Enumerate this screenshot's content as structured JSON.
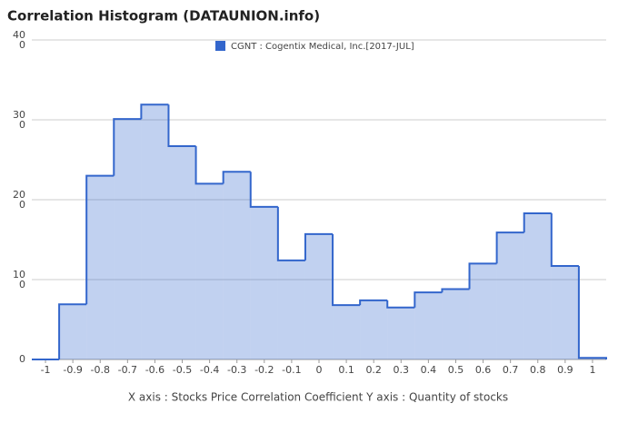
{
  "chart_data": {
    "type": "histogram",
    "title": "Correlation Histogram (DATAUNION.info)",
    "x_label": "X axis : Stocks Price Correlation Coefficient  Y axis : Quantity of stocks",
    "bins": [
      -1.05,
      -0.95,
      -0.85,
      -0.75,
      -0.65,
      -0.55,
      -0.45,
      -0.35,
      -0.25,
      -0.15,
      -0.05,
      0.05,
      0.15,
      0.25,
      0.35,
      0.45,
      0.55,
      0.65,
      0.75,
      0.85,
      0.95,
      1.05
    ],
    "series": [
      {
        "name": "CGNT : Cogentix Medical, Inc.[2017-JUL]",
        "color": "#3366cc",
        "values": [
          0,
          69,
          230,
          301,
          319,
          267,
          220,
          235,
          191,
          124,
          157,
          68,
          74,
          65,
          84,
          88,
          120,
          159,
          183,
          117,
          2
        ]
      }
    ],
    "xlim": [
      -1.05,
      1.05
    ],
    "xticks": [
      -1,
      -0.9,
      -0.8,
      -0.7,
      -0.6,
      -0.5,
      -0.4,
      -0.3,
      -0.2,
      -0.1,
      0,
      0.1,
      0.2,
      0.3,
      0.4,
      0.5,
      0.6,
      0.7,
      0.8,
      0.9,
      1
    ],
    "ylim": [
      0,
      400
    ],
    "yticks": [
      0,
      100,
      200,
      300,
      400
    ],
    "grid": true
  }
}
